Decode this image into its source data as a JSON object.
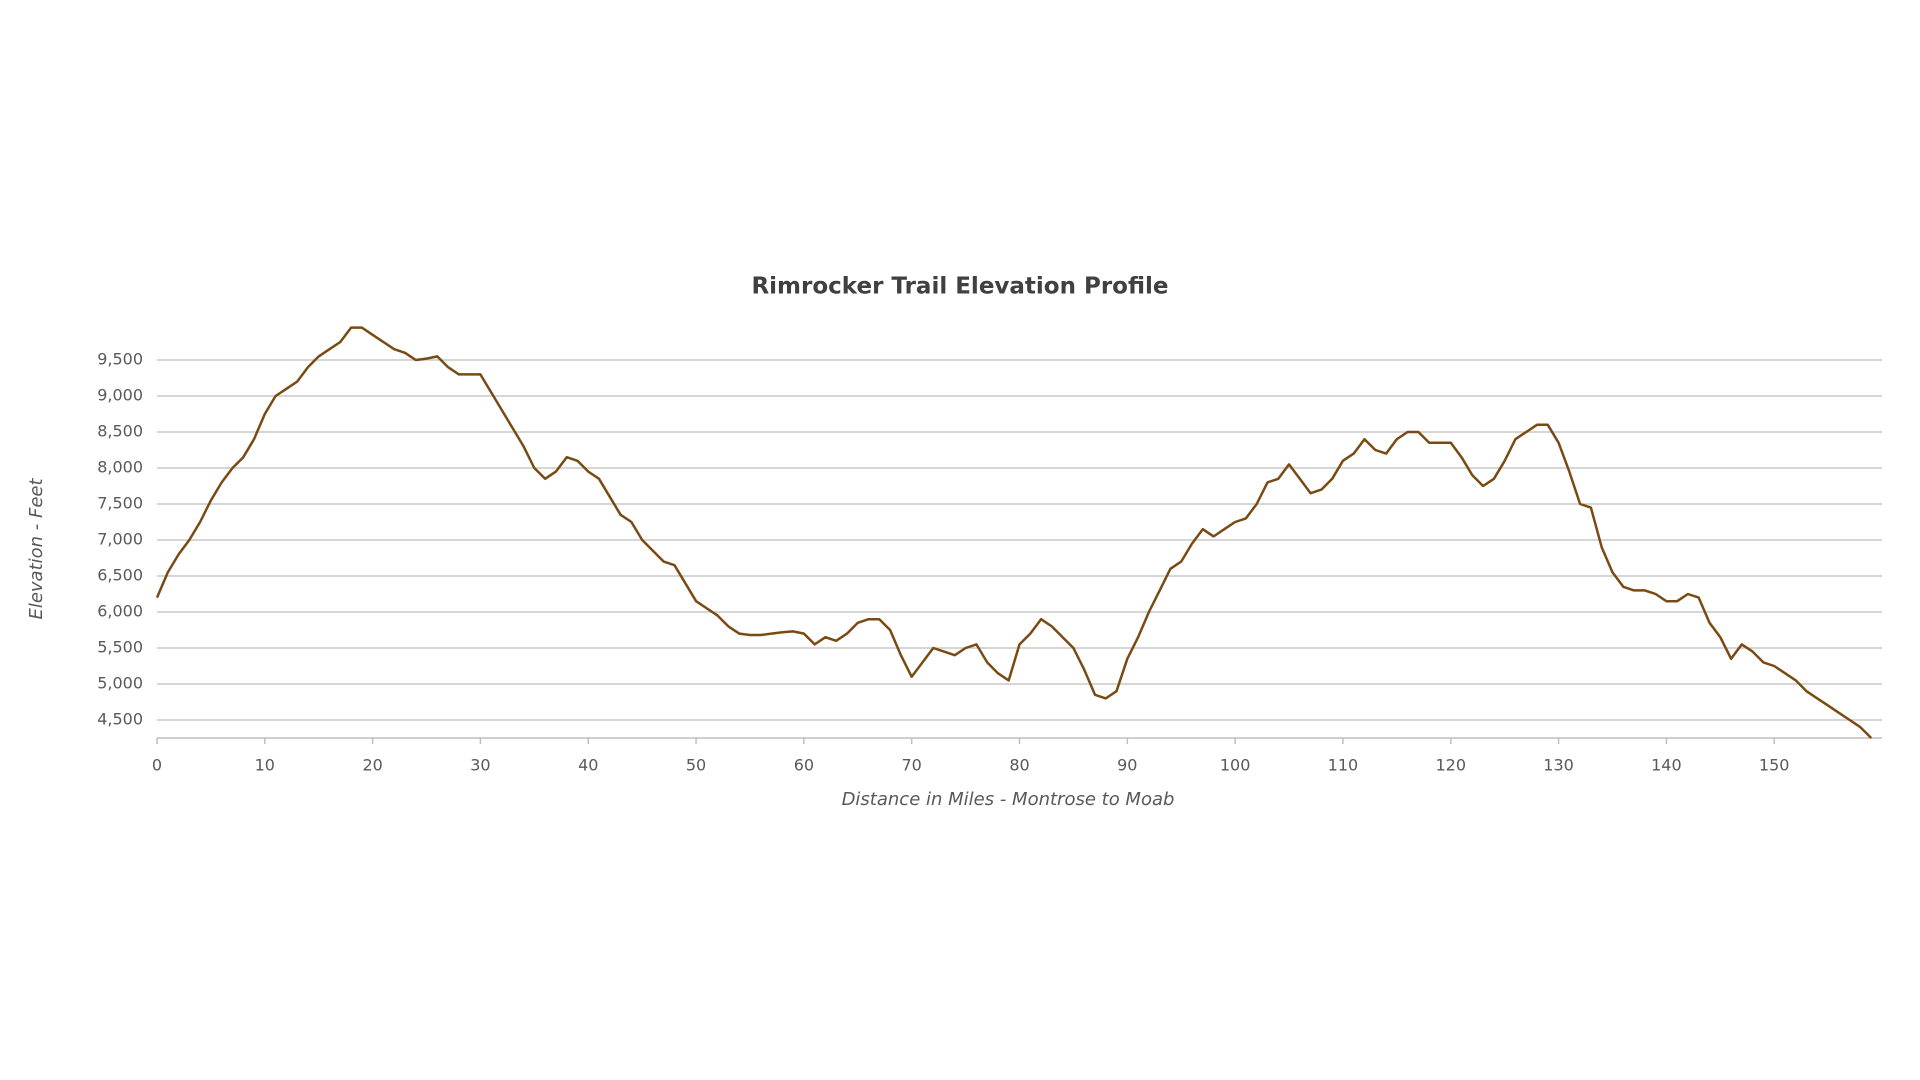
{
  "chart_data": {
    "type": "line",
    "title": "Rimrocker Trail Elevation Profile",
    "x_label": "Distance in Miles - Montrose to Moab",
    "y_label": "Elevation - Feet",
    "x": [
      0,
      1,
      2,
      3,
      4,
      5,
      6,
      7,
      8,
      9,
      10,
      11,
      12,
      13,
      14,
      15,
      16,
      17,
      18,
      19,
      20,
      21,
      22,
      23,
      24,
      25,
      26,
      27,
      28,
      29,
      30,
      31,
      32,
      33,
      34,
      35,
      36,
      37,
      38,
      39,
      40,
      41,
      42,
      43,
      44,
      45,
      46,
      47,
      48,
      49,
      50,
      51,
      52,
      53,
      54,
      55,
      56,
      57,
      58,
      59,
      60,
      61,
      62,
      63,
      64,
      65,
      66,
      67,
      68,
      69,
      70,
      71,
      72,
      73,
      74,
      75,
      76,
      77,
      78,
      79,
      80,
      81,
      82,
      83,
      84,
      85,
      86,
      87,
      88,
      89,
      90,
      91,
      92,
      93,
      94,
      95,
      96,
      97,
      98,
      99,
      100,
      101,
      102,
      103,
      104,
      105,
      106,
      107,
      108,
      109,
      110,
      111,
      112,
      113,
      114,
      115,
      116,
      117,
      118,
      119,
      120,
      121,
      122,
      123,
      124,
      125,
      126,
      127,
      128,
      129,
      130,
      131,
      132,
      133,
      134,
      135,
      136,
      137,
      138,
      139,
      140,
      141,
      142,
      143,
      144,
      145,
      146,
      147,
      148,
      149,
      150,
      151,
      152,
      153,
      154,
      155,
      156,
      157,
      158,
      159
    ],
    "series": [
      {
        "name": "Elevation",
        "color": "#7a4a14",
        "values": [
          6200,
          6550,
          6800,
          7000,
          7250,
          7550,
          7800,
          8000,
          8150,
          8400,
          8750,
          9000,
          9100,
          9200,
          9400,
          9550,
          9650,
          9750,
          9950,
          9950,
          9850,
          9750,
          9650,
          9600,
          9500,
          9520,
          9550,
          9400,
          9300,
          9300,
          9300,
          9050,
          8800,
          8550,
          8300,
          8000,
          7850,
          7950,
          8150,
          8100,
          7950,
          7850,
          7600,
          7350,
          7250,
          7000,
          6850,
          6700,
          6650,
          6400,
          6150,
          6050,
          5950,
          5800,
          5700,
          5680,
          5680,
          5700,
          5720,
          5730,
          5700,
          5550,
          5650,
          5600,
          5700,
          5850,
          5900,
          5900,
          5750,
          5400,
          5100,
          5300,
          5500,
          5450,
          5400,
          5500,
          5550,
          5300,
          5150,
          5050,
          5550,
          5700,
          5900,
          5800,
          5650,
          5500,
          5200,
          4850,
          4800,
          4900,
          5350,
          5650,
          6000,
          6300,
          6600,
          6700,
          6950,
          7150,
          7050,
          7150,
          7250,
          7300,
          7500,
          7800,
          7850,
          8050,
          7850,
          7650,
          7700,
          7850,
          8100,
          8200,
          8400,
          8250,
          8200,
          8400,
          8500,
          8500,
          8350,
          8350,
          8350,
          8150,
          7900,
          7750,
          7850,
          8100,
          8400,
          8500,
          8600,
          8600,
          8350,
          7950,
          7500,
          7450,
          6900,
          6550,
          6350,
          6300,
          6300,
          6250,
          6150,
          6150,
          6250,
          6200,
          5850,
          5650,
          5350,
          5550,
          5450,
          5300,
          5250,
          5150,
          5050,
          4900,
          4800,
          4700,
          4600,
          4500,
          4400,
          4250
        ]
      }
    ],
    "xlim": [
      0,
      160
    ],
    "xticks": [
      0,
      10,
      20,
      30,
      40,
      50,
      60,
      70,
      80,
      90,
      100,
      110,
      120,
      130,
      140,
      150
    ],
    "ylim": [
      4250,
      10000
    ],
    "yticks": [
      {
        "value": 4500,
        "label": "4,500"
      },
      {
        "value": 5000,
        "label": "5,000"
      },
      {
        "value": 5500,
        "label": "5,500"
      },
      {
        "value": 6000,
        "label": "6,000"
      },
      {
        "value": 6500,
        "label": "6,500"
      },
      {
        "value": 7000,
        "label": "7,000"
      },
      {
        "value": 7500,
        "label": "7,500"
      },
      {
        "value": 8000,
        "label": "8,000"
      },
      {
        "value": 8500,
        "label": "8,500"
      },
      {
        "value": 9000,
        "label": "9,000"
      },
      {
        "value": 9500,
        "label": "9,500"
      }
    ],
    "grid": true
  }
}
